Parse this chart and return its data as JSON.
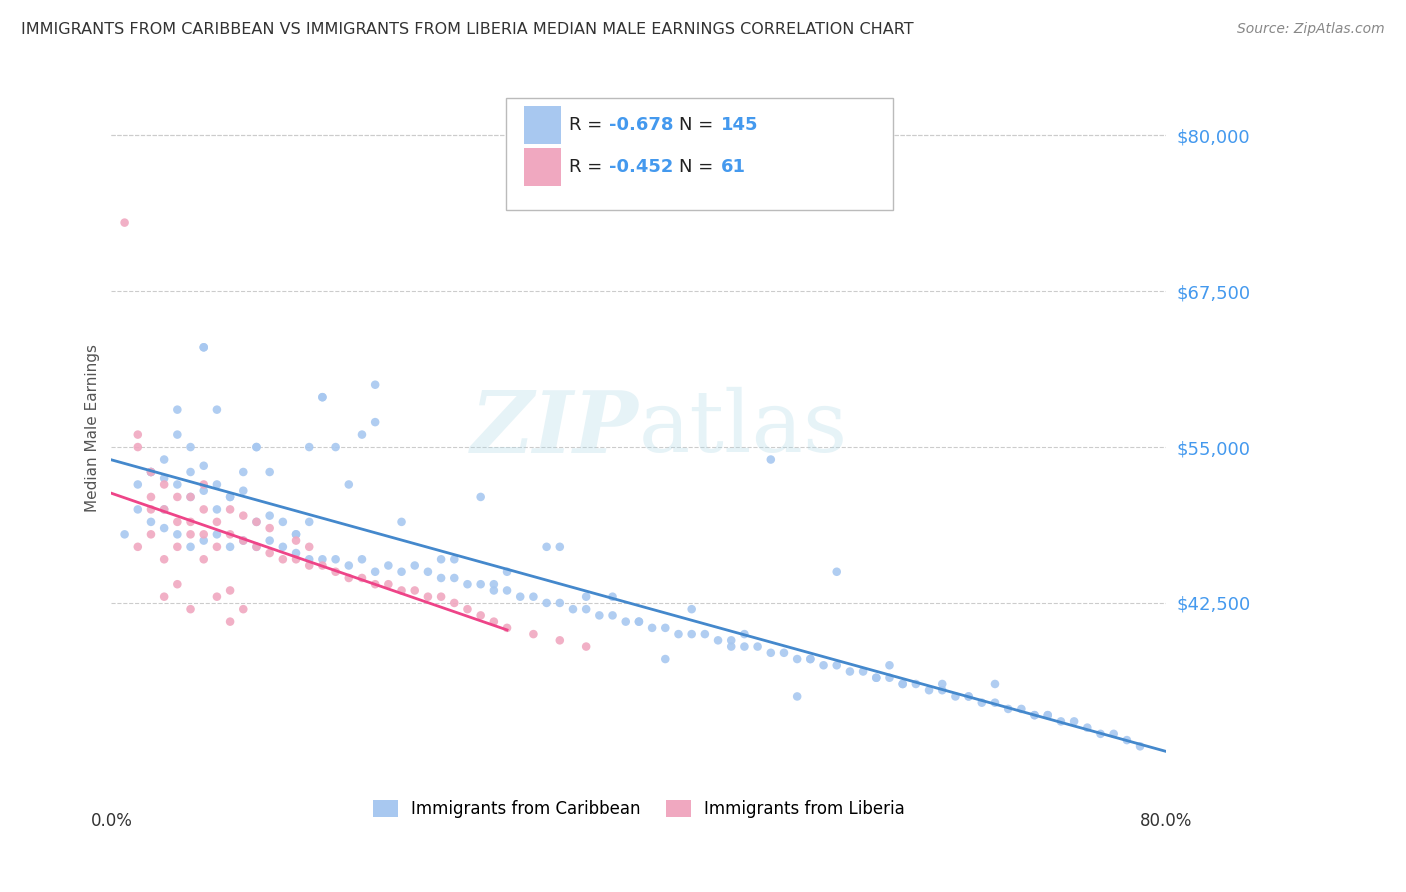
{
  "title": "IMMIGRANTS FROM CARIBBEAN VS IMMIGRANTS FROM LIBERIA MEDIAN MALE EARNINGS CORRELATION CHART",
  "source": "Source: ZipAtlas.com",
  "ylabel": "Median Male Earnings",
  "yticks": [
    42500,
    55000,
    67500,
    80000
  ],
  "ytick_labels": [
    "$42,500",
    "$55,000",
    "$67,500",
    "$80,000"
  ],
  "ylim": [
    28000,
    85000
  ],
  "xlim": [
    0.0,
    0.8
  ],
  "caribbean_color": "#a8c8f0",
  "liberia_color": "#f0a8c0",
  "caribbean_line_color": "#4488cc",
  "liberia_line_color": "#ee4488",
  "caribbean_R": -0.678,
  "caribbean_N": 145,
  "liberia_R": -0.452,
  "liberia_N": 61,
  "background_color": "#ffffff",
  "grid_color": "#cccccc",
  "legend_label1": "Immigrants from Caribbean",
  "legend_label2": "Immigrants from Liberia",
  "title_color": "#333333",
  "axis_label_color": "#4499ee",
  "caribbean_scatter_x": [
    0.01,
    0.02,
    0.02,
    0.03,
    0.03,
    0.04,
    0.04,
    0.05,
    0.05,
    0.05,
    0.06,
    0.06,
    0.06,
    0.07,
    0.07,
    0.07,
    0.08,
    0.08,
    0.08,
    0.09,
    0.09,
    0.1,
    0.1,
    0.11,
    0.11,
    0.12,
    0.12,
    0.13,
    0.14,
    0.14,
    0.15,
    0.15,
    0.16,
    0.17,
    0.18,
    0.19,
    0.2,
    0.21,
    0.22,
    0.23,
    0.24,
    0.25,
    0.26,
    0.27,
    0.28,
    0.29,
    0.3,
    0.31,
    0.32,
    0.33,
    0.34,
    0.35,
    0.36,
    0.37,
    0.38,
    0.39,
    0.4,
    0.41,
    0.42,
    0.43,
    0.44,
    0.45,
    0.46,
    0.47,
    0.48,
    0.49,
    0.5,
    0.51,
    0.52,
    0.53,
    0.54,
    0.55,
    0.56,
    0.57,
    0.58,
    0.59,
    0.6,
    0.61,
    0.62,
    0.63,
    0.64,
    0.65,
    0.66,
    0.67,
    0.68,
    0.69,
    0.7,
    0.71,
    0.72,
    0.73,
    0.74,
    0.75,
    0.76,
    0.77,
    0.78,
    0.04,
    0.05,
    0.06,
    0.07,
    0.08,
    0.09,
    0.1,
    0.11,
    0.12,
    0.13,
    0.15,
    0.16,
    0.17,
    0.18,
    0.2,
    0.22,
    0.25,
    0.28,
    0.3,
    0.33,
    0.34,
    0.38,
    0.42,
    0.44,
    0.47,
    0.48,
    0.5,
    0.52,
    0.55,
    0.58,
    0.59,
    0.63,
    0.67,
    0.71,
    0.16,
    0.2,
    0.26,
    0.07,
    0.11,
    0.14,
    0.19,
    0.29,
    0.36,
    0.4,
    0.53,
    0.6,
    0.65,
    0.7,
    0.03,
    0.04
  ],
  "caribbean_scatter_y": [
    48000,
    50000,
    52000,
    49000,
    53000,
    48500,
    52500,
    48000,
    52000,
    56000,
    47000,
    51000,
    53000,
    47500,
    51500,
    53500,
    48000,
    50000,
    52000,
    47000,
    51000,
    47500,
    51500,
    47000,
    49000,
    47500,
    49500,
    47000,
    46500,
    48000,
    46000,
    49000,
    46000,
    46000,
    45500,
    46000,
    45000,
    45500,
    45000,
    45500,
    45000,
    44500,
    44500,
    44000,
    44000,
    43500,
    43500,
    43000,
    43000,
    42500,
    42500,
    42000,
    42000,
    41500,
    41500,
    41000,
    41000,
    40500,
    40500,
    40000,
    40000,
    40000,
    39500,
    39500,
    39000,
    39000,
    38500,
    38500,
    38000,
    38000,
    37500,
    37500,
    37000,
    37000,
    36500,
    36500,
    36000,
    36000,
    35500,
    35500,
    35000,
    35000,
    34500,
    34500,
    34000,
    34000,
    33500,
    33500,
    33000,
    33000,
    32500,
    32000,
    32000,
    31500,
    31000,
    54000,
    58000,
    55000,
    63000,
    58000,
    51000,
    53000,
    55000,
    53000,
    49000,
    55000,
    59000,
    55000,
    52000,
    60000,
    49000,
    46000,
    51000,
    45000,
    47000,
    47000,
    43000,
    38000,
    42000,
    39000,
    40000,
    54000,
    35000,
    45000,
    36500,
    37500,
    36000,
    36000,
    33500,
    59000,
    57000,
    46000,
    63000,
    55000,
    48000,
    56000,
    44000,
    43000,
    41000,
    38000,
    36000,
    35000,
    33500,
    53000,
    50000
  ],
  "liberia_scatter_x": [
    0.01,
    0.02,
    0.02,
    0.03,
    0.03,
    0.04,
    0.04,
    0.05,
    0.05,
    0.05,
    0.06,
    0.06,
    0.07,
    0.07,
    0.07,
    0.08,
    0.08,
    0.09,
    0.09,
    0.1,
    0.1,
    0.11,
    0.11,
    0.12,
    0.12,
    0.13,
    0.14,
    0.14,
    0.15,
    0.15,
    0.16,
    0.17,
    0.18,
    0.19,
    0.2,
    0.21,
    0.22,
    0.23,
    0.24,
    0.25,
    0.26,
    0.27,
    0.28,
    0.29,
    0.3,
    0.32,
    0.34,
    0.36,
    0.02,
    0.03,
    0.04,
    0.04,
    0.05,
    0.06,
    0.07,
    0.08,
    0.09,
    0.09,
    0.1,
    0.03,
    0.06
  ],
  "liberia_scatter_y": [
    73000,
    56000,
    47000,
    51000,
    48000,
    50000,
    52000,
    49000,
    51000,
    47000,
    49000,
    51000,
    48000,
    50000,
    52000,
    49000,
    47000,
    48000,
    50000,
    47500,
    49500,
    47000,
    49000,
    46500,
    48500,
    46000,
    46000,
    47500,
    45500,
    47000,
    45500,
    45000,
    44500,
    44500,
    44000,
    44000,
    43500,
    43500,
    43000,
    43000,
    42500,
    42000,
    41500,
    41000,
    40500,
    40000,
    39500,
    39000,
    55000,
    53000,
    46000,
    43000,
    44000,
    42000,
    46000,
    43000,
    41000,
    43500,
    42000,
    50000,
    48000
  ]
}
